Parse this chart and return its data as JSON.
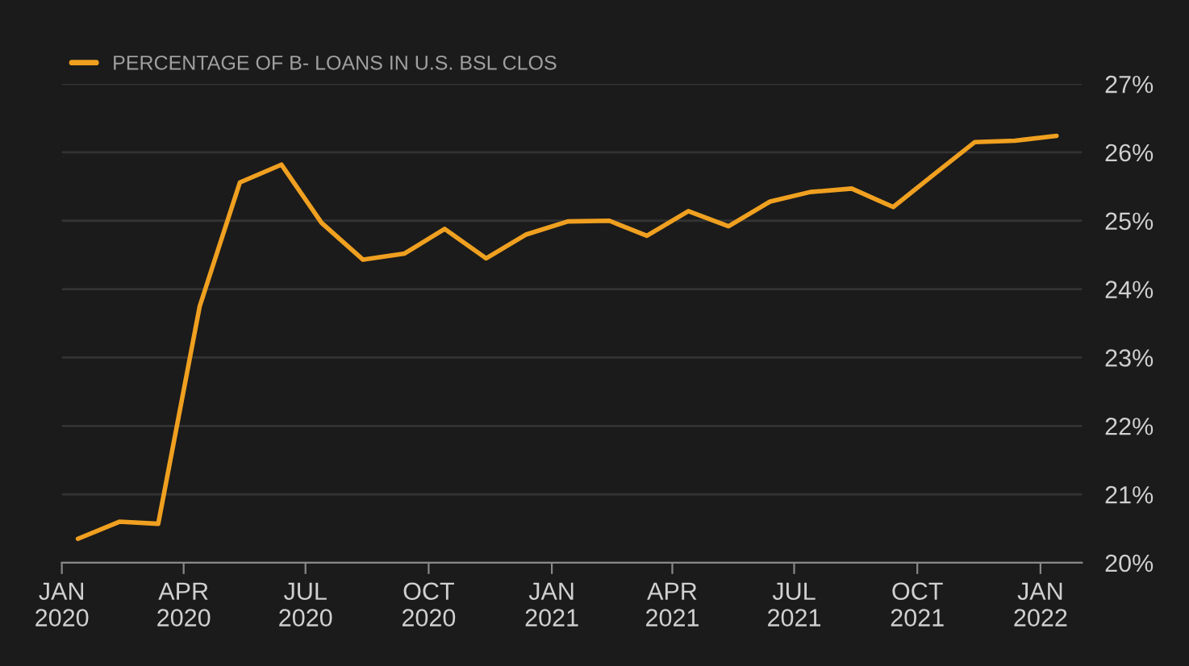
{
  "chart_data": {
    "type": "line",
    "x": [
      "2020-01-13",
      "2020-02-13",
      "2020-03-13",
      "2020-04-13",
      "2020-05-13",
      "2020-06-13",
      "2020-07-13",
      "2020-08-13",
      "2020-09-13",
      "2020-10-13",
      "2020-11-13",
      "2020-12-13",
      "2021-01-13",
      "2021-02-13",
      "2021-03-13",
      "2021-04-13",
      "2021-05-13",
      "2021-06-13",
      "2021-07-13",
      "2021-08-13",
      "2021-09-13",
      "2021-10-13",
      "2021-11-13",
      "2021-12-13",
      "2022-01-13"
    ],
    "series": [
      {
        "name": "PERCENTAGE OF B- LOANS IN U.S. BSL CLOS",
        "color": "#f0a020",
        "values": [
          20.35,
          20.6,
          20.57,
          23.75,
          25.56,
          25.82,
          24.97,
          24.43,
          24.52,
          24.88,
          24.45,
          24.8,
          24.99,
          25.0,
          24.78,
          25.14,
          24.92,
          25.28,
          25.42,
          25.47,
          25.2,
          25.67,
          26.15,
          26.17,
          26.24
        ]
      }
    ],
    "xlim": [
      "2020-01-01",
      "2022-02-01"
    ],
    "xticks": [
      {
        "value": "2020-01-01",
        "label": "JAN\n2020"
      },
      {
        "value": "2020-04-01",
        "label": "APR\n2020"
      },
      {
        "value": "2020-07-01",
        "label": "JUL\n2020"
      },
      {
        "value": "2020-10-01",
        "label": "OCT\n2020"
      },
      {
        "value": "2021-01-01",
        "label": "JAN\n2021"
      },
      {
        "value": "2021-04-01",
        "label": "APR\n2021"
      },
      {
        "value": "2021-07-01",
        "label": "JUL\n2021"
      },
      {
        "value": "2021-10-01",
        "label": "OCT\n2021"
      },
      {
        "value": "2022-01-01",
        "label": "JAN\n2022"
      }
    ],
    "ylim": [
      20,
      27
    ],
    "yticks": [
      {
        "value": 20,
        "label": "20%"
      },
      {
        "value": 21,
        "label": "21%"
      },
      {
        "value": 22,
        "label": "22%"
      },
      {
        "value": 23,
        "label": "23%"
      },
      {
        "value": 24,
        "label": "24%"
      },
      {
        "value": 25,
        "label": "25%"
      },
      {
        "value": 26,
        "label": "26%"
      },
      {
        "value": 27,
        "label": "27%"
      }
    ],
    "grid": "y",
    "legend": "top left",
    "marker": "none",
    "line_style": "solid"
  }
}
